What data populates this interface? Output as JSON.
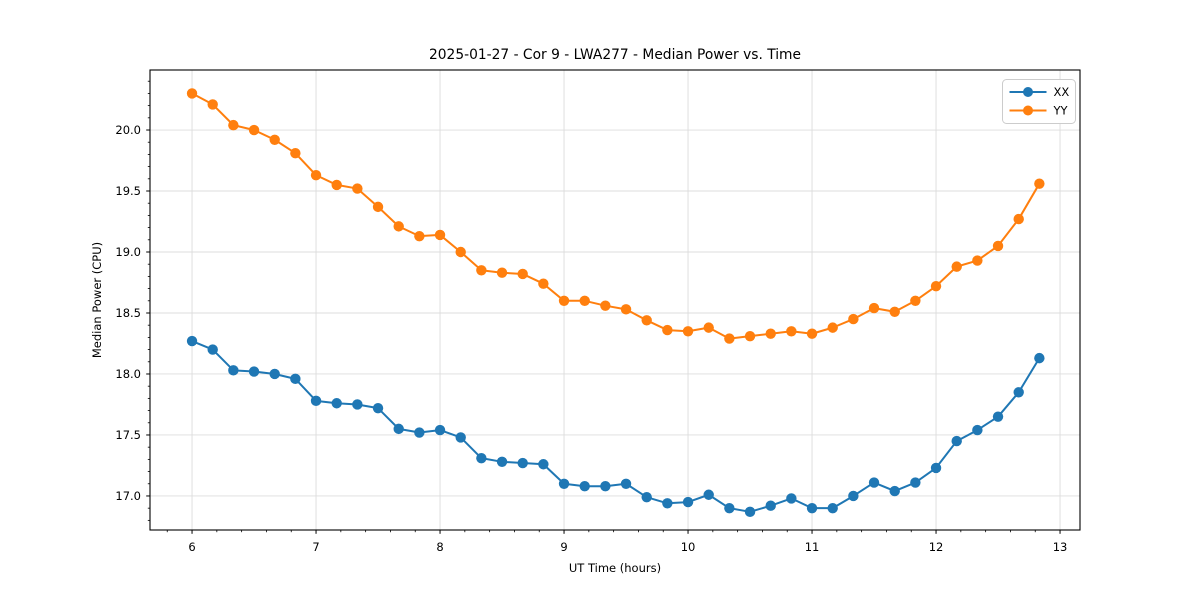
{
  "chart_data": {
    "type": "line",
    "title": "2025-01-27 - Cor 9 - LWA277 - Median Power vs. Time",
    "xlabel": "UT Time (hours)",
    "ylabel": "Median Power (CPU)",
    "xlim": [
      5.661,
      13.161
    ],
    "ylim": [
      16.721,
      20.492
    ],
    "x_ticks": [
      6,
      7,
      8,
      9,
      10,
      11,
      12,
      13
    ],
    "x_tick_labels": [
      "6",
      "7",
      "8",
      "9",
      "10",
      "11",
      "12",
      "13"
    ],
    "y_ticks": [
      17.0,
      17.5,
      18.0,
      18.5,
      19.0,
      19.5,
      20.0
    ],
    "y_tick_labels": [
      "17.0",
      "17.5",
      "18.0",
      "18.5",
      "19.0",
      "19.5",
      "20.0"
    ],
    "minor_tick_step_x": 0.2,
    "minor_tick_step_y": 0.1,
    "grid": true,
    "grid_color": "#dcdcdc",
    "axis_color": "#000000",
    "background_color": "#ffffff",
    "legend_position": "upper right",
    "x": [
      6.0,
      6.1667,
      6.3333,
      6.5,
      6.6667,
      6.8333,
      7.0,
      7.1667,
      7.3333,
      7.5,
      7.6667,
      7.8333,
      8.0,
      8.1667,
      8.3333,
      8.5,
      8.6667,
      8.8333,
      9.0,
      9.1667,
      9.3333,
      9.5,
      9.6667,
      9.8333,
      10.0,
      10.1667,
      10.3333,
      10.5,
      10.6667,
      10.8333,
      11.0,
      11.1667,
      11.3333,
      11.5,
      11.6667,
      11.8333,
      12.0,
      12.1667,
      12.3333,
      12.5,
      12.6667,
      12.8333
    ],
    "series": [
      {
        "name": "XX",
        "color": "#1f77b4",
        "values": [
          18.27,
          18.2,
          18.03,
          18.02,
          18.0,
          17.96,
          17.78,
          17.76,
          17.75,
          17.72,
          17.55,
          17.52,
          17.54,
          17.48,
          17.31,
          17.28,
          17.27,
          17.26,
          17.1,
          17.08,
          17.08,
          17.1,
          16.99,
          16.94,
          16.95,
          17.01,
          16.9,
          16.87,
          16.92,
          16.98,
          16.9,
          16.9,
          17.0,
          17.11,
          17.04,
          17.11,
          17.23,
          17.45,
          17.54,
          17.65,
          17.85,
          18.13
        ]
      },
      {
        "name": "YY",
        "color": "#ff7f0e",
        "values": [
          20.3,
          20.21,
          20.04,
          20.0,
          19.92,
          19.81,
          19.63,
          19.55,
          19.52,
          19.37,
          19.21,
          19.13,
          19.14,
          19.0,
          18.85,
          18.83,
          18.82,
          18.74,
          18.6,
          18.6,
          18.56,
          18.53,
          18.44,
          18.36,
          18.35,
          18.38,
          18.29,
          18.31,
          18.33,
          18.35,
          18.33,
          18.38,
          18.45,
          18.54,
          18.51,
          18.6,
          18.72,
          18.88,
          18.93,
          19.05,
          19.27,
          19.56
        ]
      }
    ]
  }
}
